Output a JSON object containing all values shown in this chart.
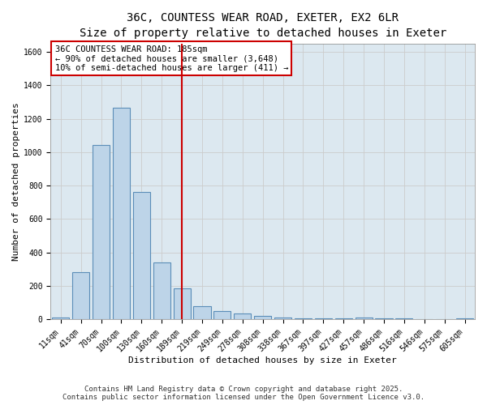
{
  "title_line1": "36C, COUNTESS WEAR ROAD, EXETER, EX2 6LR",
  "title_line2": "Size of property relative to detached houses in Exeter",
  "xlabel": "Distribution of detached houses by size in Exeter",
  "ylabel": "Number of detached properties",
  "categories": [
    "11sqm",
    "41sqm",
    "70sqm",
    "100sqm",
    "130sqm",
    "160sqm",
    "189sqm",
    "219sqm",
    "249sqm",
    "278sqm",
    "308sqm",
    "338sqm",
    "367sqm",
    "397sqm",
    "427sqm",
    "457sqm",
    "486sqm",
    "516sqm",
    "546sqm",
    "575sqm",
    "605sqm"
  ],
  "values": [
    10,
    280,
    1045,
    1265,
    760,
    340,
    185,
    80,
    47,
    35,
    22,
    10,
    7,
    5,
    4,
    10,
    3,
    3,
    0,
    0,
    3
  ],
  "bar_color": "#bdd4e8",
  "bar_edge_color": "#5b8db8",
  "vline_x_index": 6,
  "vline_color": "#cc0000",
  "annotation_text": "36C COUNTESS WEAR ROAD: 185sqm\n← 90% of detached houses are smaller (3,648)\n10% of semi-detached houses are larger (411) →",
  "annotation_box_facecolor": "#ffffff",
  "annotation_box_edgecolor": "#cc0000",
  "ylim": [
    0,
    1650
  ],
  "yticks": [
    0,
    200,
    400,
    600,
    800,
    1000,
    1200,
    1400,
    1600
  ],
  "grid_color": "#cccccc",
  "bg_color": "#dce8f0",
  "footer_text": "Contains HM Land Registry data © Crown copyright and database right 2025.\nContains public sector information licensed under the Open Government Licence v3.0.",
  "title_fontsize": 10,
  "subtitle_fontsize": 9,
  "axis_label_fontsize": 8,
  "tick_fontsize": 7,
  "annotation_fontsize": 7.5,
  "footer_fontsize": 6.5
}
